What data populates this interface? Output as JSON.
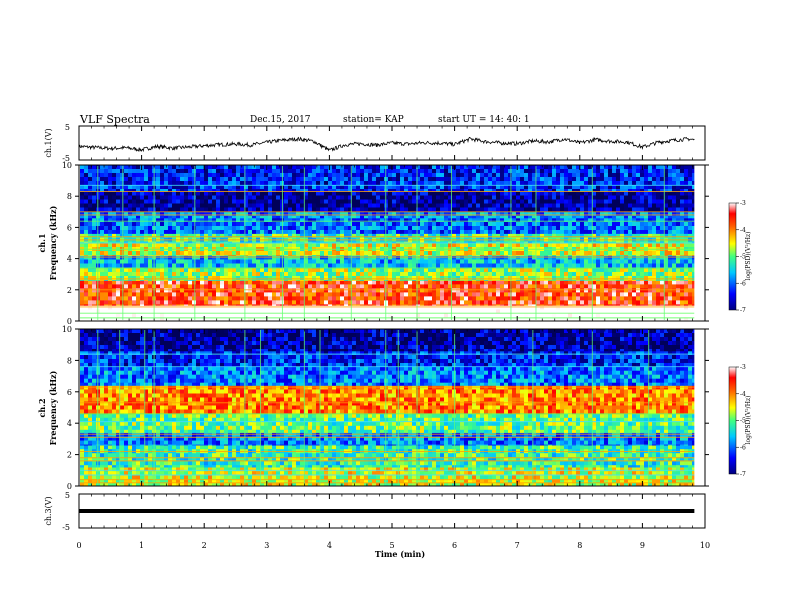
{
  "header": {
    "title": "VLF Spectra",
    "date": "Dec.15, 2017",
    "station": "station= KAP",
    "start": "start  UT =   14: 40: 1"
  },
  "chart_data": [
    {
      "type": "line",
      "panel": "ch1-waveform",
      "ylabel": "ch.1(V)",
      "ylim": [
        -5,
        5
      ],
      "yticks": [
        "5",
        "-5"
      ],
      "x": [
        0,
        0.25,
        0.5,
        0.75,
        1.0,
        1.25,
        1.5,
        1.75,
        2.0,
        2.25,
        2.5,
        2.75,
        3.0,
        3.25,
        3.5,
        3.75,
        4.0,
        4.25,
        4.5,
        4.75,
        5.0,
        5.25,
        5.5,
        5.75,
        6.0,
        6.25,
        6.5,
        6.75,
        7.0,
        7.25,
        7.5,
        7.75,
        8.0,
        8.25,
        8.5,
        8.75,
        9.0,
        9.25,
        9.5,
        9.75,
        9.83
      ],
      "values": [
        -1.0,
        -1.3,
        -1.6,
        -1.4,
        -2.0,
        -1.0,
        -1.5,
        -1.2,
        -0.8,
        -0.5,
        -0.3,
        -0.6,
        0.2,
        0.8,
        1.2,
        0.5,
        -2.2,
        -0.5,
        -0.2,
        -0.6,
        0.0,
        -0.3,
        0.1,
        0.0,
        -0.4,
        1.2,
        0.4,
        0.0,
        -0.2,
        0.6,
        0.3,
        1.2,
        0.0,
        1.0,
        0.5,
        0.3,
        -1.2,
        0.2,
        0.8,
        1.2,
        0.9
      ]
    },
    {
      "type": "heatmap",
      "panel": "ch1-spectrogram",
      "ylabel": "ch.1",
      "ylabel2": "Frequency  (kHz)",
      "ylim": [
        0,
        10
      ],
      "yticks": [
        "0",
        "2",
        "4",
        "6",
        "8",
        "10"
      ],
      "colorbar": {
        "label": "log(PSD)(V²/Hz)",
        "ticks": [
          "-3",
          "-4",
          "-5",
          "-6",
          "-7"
        ],
        "range": [
          -7,
          -3
        ]
      },
      "rows": [
        {
          "f": [
            0.0,
            1.0
          ],
          "level": 2.3
        },
        {
          "f": [
            1.0,
            2.6
          ],
          "level": 1.7
        },
        {
          "f": [
            2.6,
            3.4
          ],
          "level": 1.1
        },
        {
          "f": [
            3.4,
            4.2
          ],
          "level": 0.7
        },
        {
          "f": [
            4.2,
            5.0
          ],
          "level": 1.2
        },
        {
          "f": [
            5.0,
            5.6
          ],
          "level": 0.9
        },
        {
          "f": [
            5.6,
            6.6
          ],
          "level": 0.5
        },
        {
          "f": [
            6.6,
            7.0
          ],
          "level": 0.6
        },
        {
          "f": [
            7.0,
            8.3
          ],
          "level": 0.12
        },
        {
          "f": [
            8.3,
            10.0
          ],
          "level": 0.35
        }
      ],
      "lines_khz": [
        0.2,
        0.5,
        0.9,
        2.0,
        2.7,
        3.4,
        4.1,
        4.6,
        5.0,
        5.2,
        5.4,
        6.4,
        6.8,
        7.0,
        8.3,
        8.7
      ],
      "bursts_min": [
        0.3,
        0.7,
        1.2,
        1.85,
        2.65,
        3.25,
        3.6,
        4.35,
        4.9,
        5.4,
        5.95,
        6.9,
        7.3,
        8.2,
        9.35
      ]
    },
    {
      "type": "heatmap",
      "panel": "ch2-spectrogram",
      "ylabel": "ch.2",
      "ylabel2": "Frequency  (kHz)",
      "ylim": [
        0,
        10
      ],
      "yticks": [
        "0",
        "2",
        "4",
        "6",
        "8",
        "10"
      ],
      "colorbar": {
        "label": "log(PSD)(V²/Hz)",
        "ticks": [
          "-3",
          "-4",
          "-5",
          "-6",
          "-7"
        ],
        "range": [
          -7,
          -3
        ]
      },
      "rows": [
        {
          "f": [
            0.0,
            1.2
          ],
          "level": 1.2
        },
        {
          "f": [
            1.2,
            2.6
          ],
          "level": 0.9
        },
        {
          "f": [
            2.6,
            3.4
          ],
          "level": 0.55
        },
        {
          "f": [
            3.4,
            4.6
          ],
          "level": 1.0
        },
        {
          "f": [
            4.6,
            6.4
          ],
          "level": 1.5
        },
        {
          "f": [
            6.4,
            7.6
          ],
          "level": 0.55
        },
        {
          "f": [
            7.6,
            8.6
          ],
          "level": 0.35
        },
        {
          "f": [
            8.6,
            10.0
          ],
          "level": 0.12
        }
      ],
      "lines_khz": [
        0.2,
        0.4,
        0.7,
        1.0,
        1.6,
        1.8,
        2.2,
        3.1,
        3.3,
        4.1,
        4.6,
        5.3,
        6.3,
        7.6,
        8.4
      ],
      "bursts_min": [
        0.3,
        0.65,
        1.05,
        1.2,
        2.65,
        2.9,
        3.6,
        3.85,
        4.9,
        5.1,
        5.4,
        6.0,
        7.25,
        8.2,
        9.1
      ]
    },
    {
      "type": "line",
      "panel": "ch3-waveform",
      "ylabel": "ch.3(V)",
      "ylim": [
        -5,
        5
      ],
      "yticks": [
        "5",
        "-5"
      ],
      "x": [
        0,
        9.83
      ],
      "values": [
        0,
        0
      ]
    }
  ],
  "xaxis": {
    "label": "Time  (min)",
    "ticks": [
      "0",
      "1",
      "2",
      "3",
      "4",
      "5",
      "6",
      "7",
      "8",
      "9",
      "10"
    ],
    "xlim": [
      0,
      10
    ]
  }
}
